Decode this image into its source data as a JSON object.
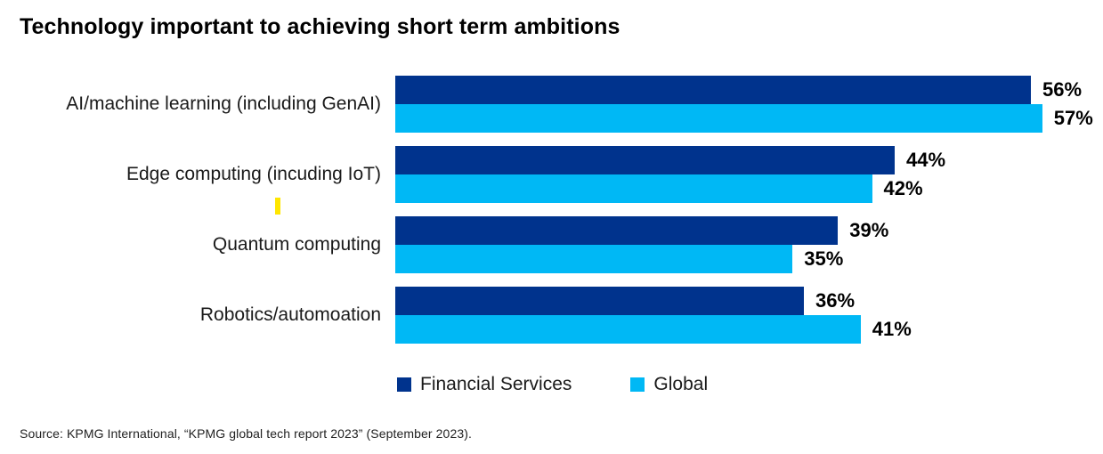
{
  "title": "Technology important to achieving short term ambitions",
  "chart_data": {
    "type": "bar",
    "orientation": "horizontal",
    "title": "Technology important to achieving short term ambitions",
    "categories": [
      "AI/machine learning (including GenAI)",
      "Edge computing (incuding IoT)",
      "Quantum computing",
      "Robotics/automoation"
    ],
    "series": [
      {
        "name": "Financial Services",
        "color": "#00338D",
        "values": [
          56,
          44,
          39,
          36
        ]
      },
      {
        "name": "Global",
        "color": "#00B8F5",
        "values": [
          57,
          42,
          35,
          41
        ]
      }
    ],
    "value_suffix": "%",
    "xlim": [
      0,
      60
    ],
    "grid": false,
    "axis_lines": false,
    "legend_position": "bottom",
    "data_labels": "outside-end"
  },
  "legend": {
    "items": [
      {
        "label": "Financial Services",
        "color": "#00338D"
      },
      {
        "label": "Global",
        "color": "#00B8F5"
      }
    ]
  },
  "source": "Source: KPMG International, “KPMG global tech report 2023” (September 2023).",
  "colors": {
    "financial_services": "#00338D",
    "global": "#00B8F5",
    "marker_yellow": "#FFE600",
    "title_text": "#000000",
    "background": "#FFFFFF"
  }
}
